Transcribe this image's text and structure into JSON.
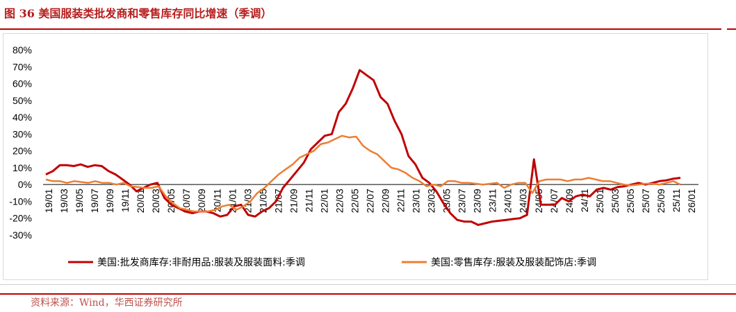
{
  "title": "图 36 美国服装类批发商和零售库存同比增速（季调）",
  "source": "资料来源：Wind，华西证券研究所",
  "colors": {
    "accent": "#c00000",
    "series1": "#c00000",
    "series2": "#ed7d31"
  },
  "chart_data": {
    "type": "line",
    "ylim": [
      -0.3,
      0.8
    ],
    "yticks": [
      "80%",
      "70%",
      "60%",
      "50%",
      "40%",
      "30%",
      "20%",
      "10%",
      "0%",
      "-10%",
      "-20%",
      "-30%"
    ],
    "xticks": [
      "19/01",
      "19/03",
      "19/05",
      "19/07",
      "19/09",
      "19/11",
      "20/01",
      "20/03",
      "20/05",
      "20/07",
      "20/09",
      "20/11",
      "21/01",
      "21/03",
      "21/05",
      "21/07",
      "21/09",
      "21/11",
      "22/01",
      "22/03",
      "22/05",
      "22/07",
      "22/09",
      "22/11",
      "23/01",
      "23/03",
      "23/05",
      "23/07",
      "23/09",
      "23/11",
      "24/01",
      "24/03",
      "24/05",
      "24/07",
      "24/09",
      "24/11",
      "25/01",
      "25/03",
      "25/05",
      "25/07",
      "25/09",
      "25/11",
      "26/01"
    ],
    "legend_position": "bottom",
    "grid": false,
    "series": [
      {
        "name": "美国:批发商库存:非耐用品:服装及服装面料:季调",
        "color": "#c00000",
        "values": [
          0.06,
          0.08,
          0.115,
          0.115,
          0.11,
          0.12,
          0.105,
          0.115,
          0.11,
          0.08,
          0.06,
          0.03,
          0.0,
          -0.04,
          -0.02,
          0.0,
          0.01,
          -0.08,
          -0.12,
          -0.14,
          -0.16,
          -0.17,
          -0.16,
          -0.16,
          -0.17,
          -0.19,
          -0.18,
          -0.13,
          -0.12,
          -0.18,
          -0.19,
          -0.16,
          -0.14,
          -0.1,
          -0.02,
          0.03,
          0.08,
          0.13,
          0.21,
          0.25,
          0.29,
          0.3,
          0.43,
          0.48,
          0.57,
          0.68,
          0.65,
          0.62,
          0.52,
          0.48,
          0.38,
          0.3,
          0.17,
          0.12,
          0.04,
          0.01,
          -0.04,
          -0.11,
          -0.17,
          -0.21,
          -0.22,
          -0.22,
          -0.24,
          -0.23,
          -0.22,
          -0.215,
          -0.21,
          -0.205,
          -0.2,
          -0.18,
          0.15,
          -0.12,
          -0.12,
          -0.12,
          -0.08,
          -0.1,
          -0.07,
          -0.06,
          -0.07,
          -0.03,
          -0.02,
          -0.03,
          -0.015,
          -0.01,
          0.0,
          0.01,
          0.0,
          0.01,
          0.02,
          0.025,
          0.035,
          0.04
        ]
      },
      {
        "name": "美国:零售库存:服装及服装配饰店:季调",
        "color": "#ed7d31",
        "values": [
          0.03,
          0.02,
          0.02,
          0.01,
          0.02,
          0.015,
          0.01,
          0.02,
          0.01,
          0.01,
          0.0,
          0.01,
          -0.01,
          -0.015,
          -0.02,
          -0.02,
          -0.01,
          -0.07,
          -0.11,
          -0.14,
          -0.15,
          -0.16,
          -0.16,
          -0.16,
          -0.15,
          -0.13,
          -0.12,
          -0.15,
          -0.13,
          -0.1,
          -0.05,
          -0.02,
          0.02,
          0.06,
          0.09,
          0.12,
          0.16,
          0.18,
          0.2,
          0.24,
          0.25,
          0.27,
          0.29,
          0.28,
          0.285,
          0.23,
          0.2,
          0.18,
          0.14,
          0.1,
          0.09,
          0.07,
          0.04,
          0.02,
          -0.01,
          0.0,
          -0.01,
          0.02,
          0.02,
          0.01,
          0.01,
          0.005,
          0.0,
          0.005,
          0.01,
          -0.02,
          0.0,
          0.01,
          0.01,
          -0.05,
          0.02,
          0.03,
          0.03,
          0.03,
          0.02,
          0.03,
          0.03,
          0.04,
          0.03,
          0.02,
          0.02,
          0.01,
          0.0,
          -0.005,
          0.0,
          0.005,
          0.005,
          0.0,
          0.01,
          0.02,
          0.0
        ]
      }
    ]
  }
}
